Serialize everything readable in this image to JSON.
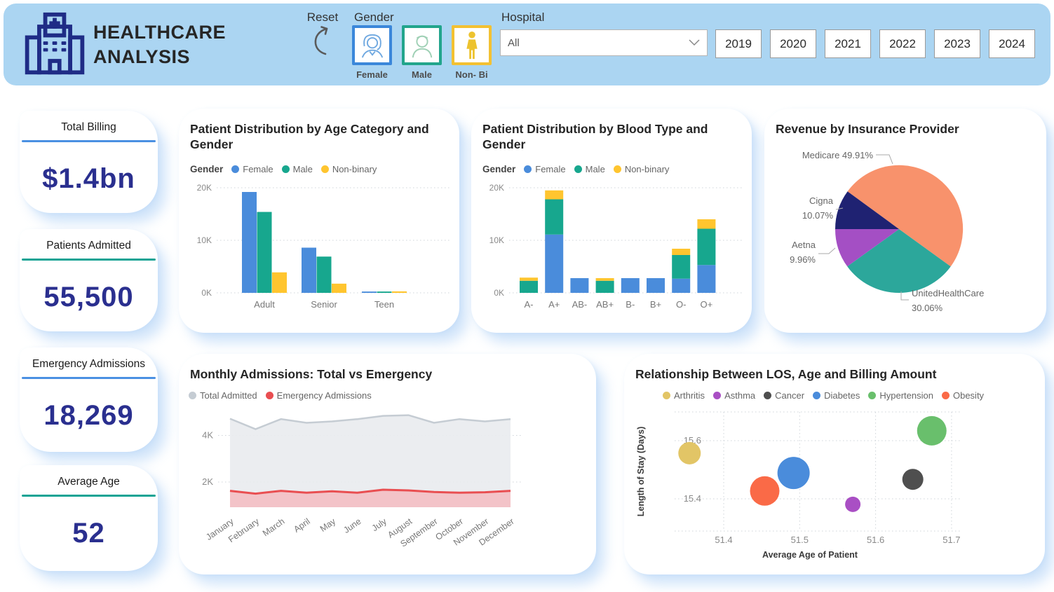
{
  "header": {
    "title_line1": "HEALTHCARE",
    "title_line2": "ANALYSIS",
    "reset_label": "Reset",
    "gender_label": "Gender",
    "gender_options": [
      {
        "label": "Female",
        "border_color": "#3B87DA",
        "icon": "female-icon",
        "icon_color": "#6FA8E0"
      },
      {
        "label": "Male",
        "border_color": "#22A58C",
        "icon": "male-icon",
        "icon_color": "#9FD0B5"
      },
      {
        "label": "Non- Bi",
        "border_color": "#F3C132",
        "icon": "nonbinary-icon",
        "icon_color": "#EDC32F"
      }
    ],
    "hospital_label": "Hospital",
    "hospital_value": "All",
    "years": [
      "2019",
      "2020",
      "2021",
      "2022",
      "2023",
      "2024"
    ]
  },
  "kpis": [
    {
      "label": "Total Billing",
      "value": "$1.4bn",
      "accent": "#4A90E2"
    },
    {
      "label": "Patients Admitted",
      "value": "55,500",
      "accent": "#16A394"
    },
    {
      "label": "Emergency Admissions",
      "value": "18,269",
      "accent": "#4A90E2"
    },
    {
      "label": "Average Age",
      "value": "52",
      "accent": "#16A394"
    }
  ],
  "chart_data": [
    {
      "id": "age-gender",
      "type": "bar",
      "title": "Patient Distribution by Age Category and Gender",
      "legend_title": "Gender",
      "categories": [
        "Adult",
        "Senior",
        "Teen"
      ],
      "series": [
        {
          "name": "Female",
          "color": "#4A8CDB",
          "values": [
            19200,
            8600,
            250
          ]
        },
        {
          "name": "Male",
          "color": "#17A78E",
          "values": [
            15400,
            6900,
            250
          ]
        },
        {
          "name": "Non-binary",
          "color": "#FFC52F",
          "values": [
            3900,
            1750,
            280
          ]
        }
      ],
      "ylim": [
        0,
        20000
      ],
      "yticks": [
        "0K",
        "10K",
        "20K"
      ]
    },
    {
      "id": "blood-gender",
      "type": "stacked-bar",
      "title": "Patient Distribution by Blood Type and Gender",
      "legend_title": "Gender",
      "categories": [
        "A-",
        "A+",
        "AB-",
        "AB+",
        "B-",
        "B+",
        "O-",
        "O+"
      ],
      "series": [
        {
          "name": "Female",
          "color": "#4A8CDB",
          "values": [
            0,
            11100,
            2800,
            0,
            2800,
            2800,
            2700,
            5300
          ]
        },
        {
          "name": "Male",
          "color": "#17A78E",
          "values": [
            2300,
            6700,
            0,
            2300,
            0,
            0,
            4500,
            6900
          ]
        },
        {
          "name": "Non-binary",
          "color": "#FFC52F",
          "values": [
            600,
            1700,
            0,
            500,
            0,
            0,
            1200,
            1800
          ]
        }
      ],
      "ylim": [
        0,
        20000
      ],
      "yticks": [
        "0K",
        "10K",
        "20K"
      ]
    },
    {
      "id": "insurance-pie",
      "type": "pie",
      "title": "Revenue by Insurance Provider",
      "slices": [
        {
          "name": "Medicare",
          "pct": 49.91,
          "pct_label": "49.91%",
          "color": "#F8926C"
        },
        {
          "name": "UnitedHealthCare",
          "pct": 30.06,
          "pct_label": "30.06%",
          "color": "#2CA79B"
        },
        {
          "name": "Aetna",
          "pct": 9.96,
          "pct_label": "9.96%",
          "color": "#A44FC4"
        },
        {
          "name": "Cigna",
          "pct": 10.07,
          "pct_label": "10.07%",
          "color": "#1F2272"
        }
      ],
      "start_angle_deg": -53.75
    },
    {
      "id": "monthly-admissions",
      "type": "area",
      "title": "Monthly Admissions: Total vs Emergency",
      "categories": [
        "January",
        "February",
        "March",
        "April",
        "May",
        "June",
        "July",
        "August",
        "September",
        "October",
        "November",
        "December"
      ],
      "series": [
        {
          "name": "Total Admitted",
          "color": "#C5CCD3",
          "fill": "#E9ECEF",
          "values": [
            4720,
            4270,
            4700,
            4540,
            4600,
            4700,
            4840,
            4870,
            4540,
            4700,
            4600,
            4700
          ]
        },
        {
          "name": "Emergency Admissions",
          "color": "#E94E51",
          "fill": "#F3BFC4",
          "values": [
            1620,
            1500,
            1620,
            1540,
            1600,
            1540,
            1670,
            1640,
            1570,
            1540,
            1560,
            1620
          ]
        }
      ],
      "ylim": [
        1000,
        5200
      ],
      "yticks": [
        {
          "v": 2000,
          "label": "2K"
        },
        {
          "v": 4000,
          "label": "4K"
        }
      ]
    },
    {
      "id": "los-scatter",
      "type": "scatter",
      "title": "Relationship Between LOS, Age and Billing Amount",
      "xlabel": "Average Age of Patient",
      "ylabel": "Length of Stay (Days)",
      "xticks": [
        "51.4",
        "51.5",
        "51.6",
        "51.7"
      ],
      "yticks": [
        "15.4",
        "15.6"
      ],
      "xlim": [
        51.33,
        51.71
      ],
      "ylim": [
        15.35,
        15.7
      ],
      "points": [
        {
          "name": "Arthritis",
          "color": "#E2C566",
          "x": 51.355,
          "y": 15.557,
          "r": 16
        },
        {
          "name": "Asthma",
          "color": "#A94FC4",
          "x": 51.57,
          "y": 15.381,
          "r": 11
        },
        {
          "name": "Cancer",
          "color": "#4F4F4F",
          "x": 51.649,
          "y": 15.467,
          "r": 15
        },
        {
          "name": "Diabetes",
          "color": "#4A8CDB",
          "x": 51.492,
          "y": 15.489,
          "r": 23
        },
        {
          "name": "Hypertension",
          "color": "#69BF6C",
          "x": 51.674,
          "y": 15.634,
          "r": 21
        },
        {
          "name": "Obesity",
          "color": "#FA6A47",
          "x": 51.454,
          "y": 15.427,
          "r": 21
        }
      ]
    }
  ]
}
